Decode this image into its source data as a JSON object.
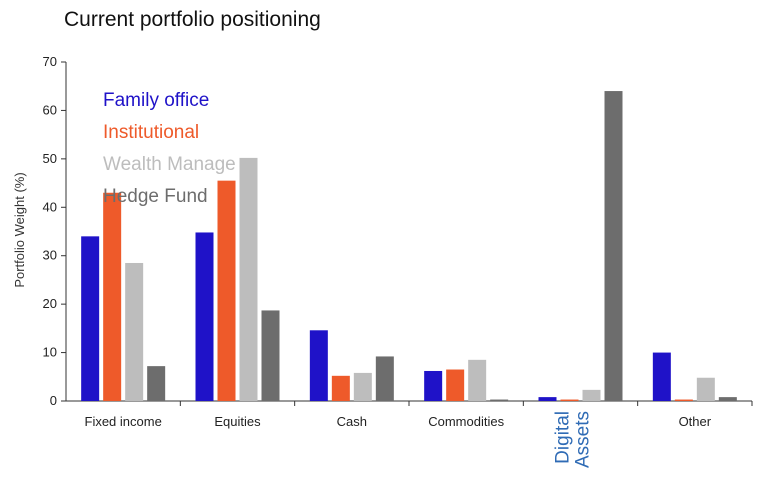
{
  "chart_data": {
    "type": "bar",
    "title": "Current portfolio positioning",
    "ylabel": "Portfolio Weight (%)",
    "xlabel": "",
    "ylim": [
      0,
      70
    ],
    "yticks": [
      0,
      10,
      20,
      30,
      40,
      50,
      60,
      70
    ],
    "grid": false,
    "legend_position": "top-left",
    "categories": [
      "Fixed income",
      "Equities",
      "Cash",
      "Commodities",
      "Digital Assets",
      "Other"
    ],
    "highlighted_category": "Digital Assets",
    "highlight_color": "#2f6bb5",
    "series": [
      {
        "name": "Family office",
        "color": "#1f12c8",
        "values": [
          34,
          34.8,
          14.6,
          6.2,
          0.8,
          10
        ]
      },
      {
        "name": "Institutional",
        "color": "#ee5a2a",
        "values": [
          43,
          45.5,
          5.2,
          6.5,
          0.3,
          0.3
        ]
      },
      {
        "name": "Wealth Manage",
        "color": "#bdbdbd",
        "values": [
          28.5,
          50.2,
          5.8,
          8.5,
          2.3,
          4.8
        ]
      },
      {
        "name": "Hedge Fund",
        "color": "#6d6d6d",
        "values": [
          7.2,
          18.7,
          9.2,
          0.3,
          64,
          0.8
        ]
      }
    ]
  }
}
